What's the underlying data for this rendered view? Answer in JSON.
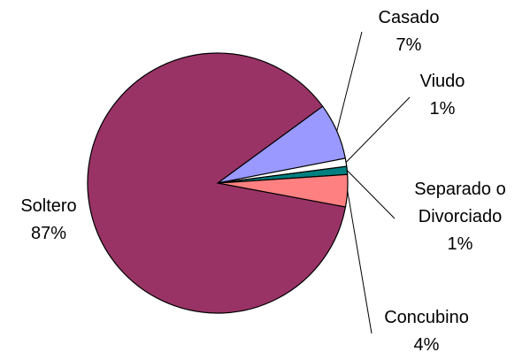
{
  "chart_data": {
    "type": "pie",
    "categories": [
      "Casado",
      "Viudo",
      "Separado o Divorciado",
      "Concubino",
      "Soltero"
    ],
    "values": [
      7,
      1,
      1,
      4,
      87
    ],
    "value_labels": [
      "7%",
      "1%",
      "1%",
      "4%",
      "87%"
    ],
    "colors": [
      "#9999ff",
      "#ffffff",
      "#008080",
      "#ff8080",
      "#993366"
    ]
  }
}
